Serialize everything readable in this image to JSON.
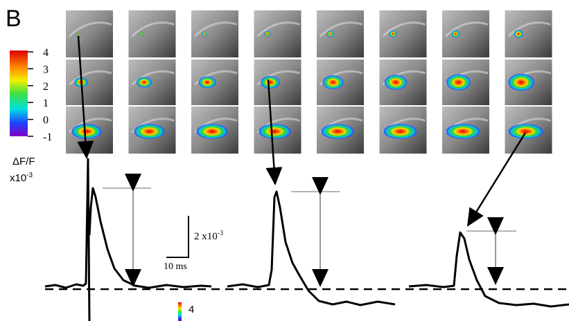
{
  "panel_label": "B",
  "colorbar": {
    "ticks": [
      "4",
      "3",
      "2",
      "1",
      "0",
      "-1"
    ],
    "label": "ΔF/F",
    "unit": {
      "base": "x10",
      "exp": "-3"
    }
  },
  "scale_bar": {
    "y_label": {
      "base": "2 x10",
      "exp": "-3"
    },
    "x_label": "10 ms"
  },
  "inset_colorbar": {
    "label": "4"
  }
}
